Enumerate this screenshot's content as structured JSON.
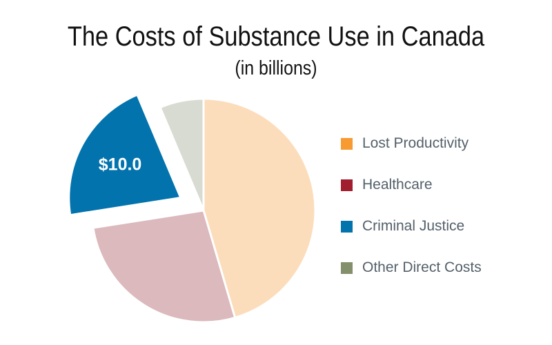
{
  "header": {
    "title": "The Costs of Substance Use in Canada",
    "subtitle": "(in billions)"
  },
  "chart_data": {
    "type": "pie",
    "title": "The Costs of Substance Use in Canada",
    "subtitle": "(in billions)",
    "unit": "billions",
    "categories": [
      "Lost Productivity",
      "Healthcare",
      "Criminal Justice",
      "Other Direct Costs"
    ],
    "values": [
      21.5,
      12.8,
      10.0,
      3.0
    ],
    "data_labels": [
      "",
      "",
      "$10.0",
      ""
    ],
    "exploded": [
      "Criminal Justice"
    ],
    "start_angle_deg": 0,
    "direction": "clockwise",
    "legend_position": "right",
    "colors": {
      "slices": [
        "#fcddbb",
        "#dbb9bd",
        "#0273ad",
        "#d8dbd1"
      ],
      "legend": [
        "#f79a31",
        "#a01e2d",
        "#0273ad",
        "#848f6c"
      ]
    }
  }
}
